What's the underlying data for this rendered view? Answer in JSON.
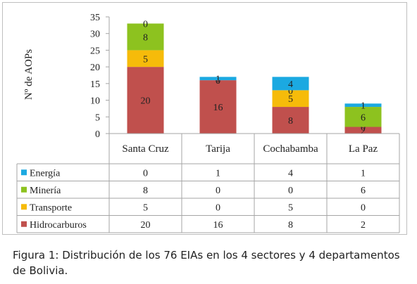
{
  "chart_data": {
    "type": "bar",
    "stacked": true,
    "categories": [
      "Santa Cruz",
      "Tarija",
      "Cochabamba",
      "La Paz"
    ],
    "ylabel": "Nº de AOPs",
    "ylim": [
      0,
      35
    ],
    "yticks": [
      0,
      5,
      10,
      15,
      20,
      25,
      30,
      35
    ],
    "series": [
      {
        "name": "Energía",
        "color": "#1ba9e1",
        "values": [
          0,
          1,
          4,
          1
        ]
      },
      {
        "name": "Minería",
        "color": "#8dc21f",
        "values": [
          8,
          0,
          0,
          6
        ]
      },
      {
        "name": "Transporte",
        "color": "#f6bb0a",
        "values": [
          5,
          0,
          5,
          0
        ]
      },
      {
        "name": "Hidrocarburos",
        "color": "#c0504d",
        "values": [
          20,
          16,
          8,
          2
        ]
      }
    ],
    "data_table": true,
    "grid": false
  },
  "caption": {
    "label": "Figura 1:",
    "text": "Distribución de los 76 EIAs en los 4 sectores y 4 departamentos de Bolivia."
  }
}
